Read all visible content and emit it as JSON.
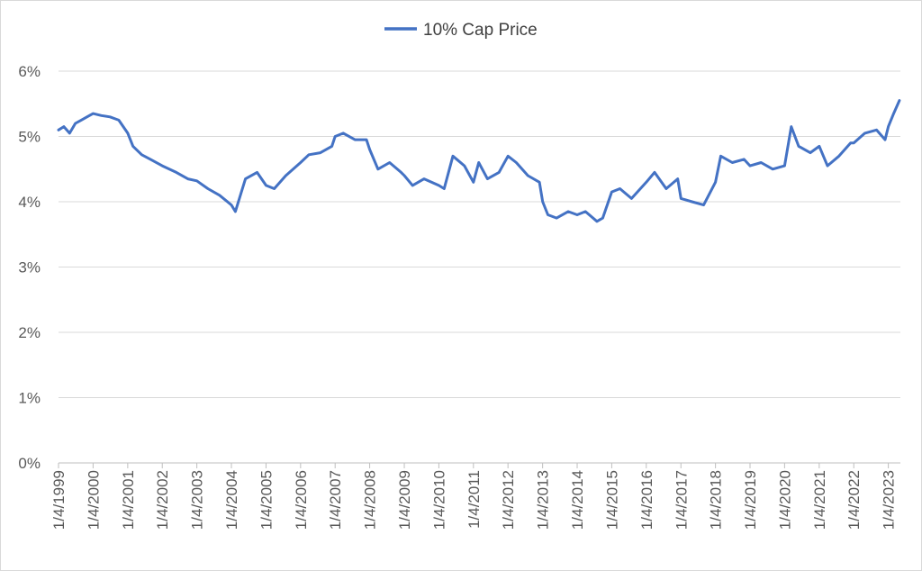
{
  "chart_data": {
    "type": "line",
    "title": "",
    "xlabel": "",
    "ylabel": "",
    "legend_position": "top",
    "grid": true,
    "series": [
      {
        "name": "10% Cap Price",
        "color": "#4472c4",
        "points": [
          [
            "1999-01-04",
            5.1
          ],
          [
            "1999-03-01",
            5.15
          ],
          [
            "1999-05-01",
            5.05
          ],
          [
            "1999-07-01",
            5.2
          ],
          [
            "1999-09-01",
            5.25
          ],
          [
            "1999-11-01",
            5.3
          ],
          [
            "2000-01-04",
            5.35
          ],
          [
            "2000-04-01",
            5.32
          ],
          [
            "2000-07-01",
            5.3
          ],
          [
            "2000-10-01",
            5.25
          ],
          [
            "2001-01-04",
            5.05
          ],
          [
            "2001-03-01",
            4.85
          ],
          [
            "2001-06-01",
            4.72
          ],
          [
            "2001-09-01",
            4.65
          ],
          [
            "2002-01-04",
            4.55
          ],
          [
            "2002-06-01",
            4.45
          ],
          [
            "2002-10-01",
            4.35
          ],
          [
            "2003-01-04",
            4.32
          ],
          [
            "2003-05-01",
            4.2
          ],
          [
            "2003-09-01",
            4.1
          ],
          [
            "2004-01-04",
            3.95
          ],
          [
            "2004-02-15",
            3.85
          ],
          [
            "2004-06-01",
            4.35
          ],
          [
            "2004-10-01",
            4.45
          ],
          [
            "2005-01-04",
            4.25
          ],
          [
            "2005-04-01",
            4.2
          ],
          [
            "2005-08-01",
            4.4
          ],
          [
            "2006-01-04",
            4.6
          ],
          [
            "2006-04-01",
            4.72
          ],
          [
            "2006-08-01",
            4.75
          ],
          [
            "2006-12-01",
            4.85
          ],
          [
            "2007-01-04",
            5.0
          ],
          [
            "2007-04-01",
            5.05
          ],
          [
            "2007-08-01",
            4.95
          ],
          [
            "2007-12-01",
            4.95
          ],
          [
            "2008-01-04",
            4.8
          ],
          [
            "2008-04-01",
            4.5
          ],
          [
            "2008-08-01",
            4.6
          ],
          [
            "2008-12-01",
            4.45
          ],
          [
            "2009-01-04",
            4.4
          ],
          [
            "2009-04-01",
            4.25
          ],
          [
            "2009-08-01",
            4.35
          ],
          [
            "2010-01-04",
            4.25
          ],
          [
            "2010-03-01",
            4.2
          ],
          [
            "2010-06-01",
            4.7
          ],
          [
            "2010-10-01",
            4.55
          ],
          [
            "2011-01-04",
            4.3
          ],
          [
            "2011-03-01",
            4.6
          ],
          [
            "2011-06-01",
            4.35
          ],
          [
            "2011-10-01",
            4.45
          ],
          [
            "2012-01-04",
            4.7
          ],
          [
            "2012-04-01",
            4.6
          ],
          [
            "2012-08-01",
            4.4
          ],
          [
            "2012-12-01",
            4.3
          ],
          [
            "2013-01-04",
            4.0
          ],
          [
            "2013-03-01",
            3.8
          ],
          [
            "2013-06-01",
            3.75
          ],
          [
            "2013-10-01",
            3.85
          ],
          [
            "2014-01-04",
            3.8
          ],
          [
            "2014-04-01",
            3.85
          ],
          [
            "2014-08-01",
            3.7
          ],
          [
            "2014-10-01",
            3.75
          ],
          [
            "2015-01-04",
            4.15
          ],
          [
            "2015-04-01",
            4.2
          ],
          [
            "2015-08-01",
            4.05
          ],
          [
            "2016-01-04",
            4.3
          ],
          [
            "2016-04-01",
            4.45
          ],
          [
            "2016-08-01",
            4.2
          ],
          [
            "2016-12-01",
            4.35
          ],
          [
            "2017-01-04",
            4.05
          ],
          [
            "2017-05-01",
            4.0
          ],
          [
            "2017-09-01",
            3.95
          ],
          [
            "2018-01-04",
            4.3
          ],
          [
            "2018-03-01",
            4.7
          ],
          [
            "2018-07-01",
            4.6
          ],
          [
            "2018-11-01",
            4.65
          ],
          [
            "2019-01-04",
            4.55
          ],
          [
            "2019-05-01",
            4.6
          ],
          [
            "2019-09-01",
            4.5
          ],
          [
            "2020-01-04",
            4.55
          ],
          [
            "2020-03-15",
            5.15
          ],
          [
            "2020-06-01",
            4.85
          ],
          [
            "2020-10-01",
            4.75
          ],
          [
            "2021-01-04",
            4.85
          ],
          [
            "2021-04-01",
            4.55
          ],
          [
            "2021-08-01",
            4.7
          ],
          [
            "2021-12-01",
            4.9
          ],
          [
            "2022-01-04",
            4.9
          ],
          [
            "2022-05-01",
            5.05
          ],
          [
            "2022-09-01",
            5.1
          ],
          [
            "2022-12-01",
            4.95
          ],
          [
            "2023-01-04",
            5.15
          ],
          [
            "2023-03-01",
            5.35
          ],
          [
            "2023-05-01",
            5.55
          ]
        ]
      }
    ],
    "y_axis": {
      "min": 0,
      "max": 6,
      "ticks": [
        0,
        1,
        2,
        3,
        4,
        5,
        6
      ],
      "tick_labels": [
        "0%",
        "1%",
        "2%",
        "3%",
        "4%",
        "5%",
        "6%"
      ]
    },
    "x_axis": {
      "start": "1999-01-04",
      "end": "2023-05-01",
      "ticks": [
        "1999-01-04",
        "2000-01-04",
        "2001-01-04",
        "2002-01-04",
        "2003-01-04",
        "2004-01-04",
        "2005-01-04",
        "2006-01-04",
        "2007-01-04",
        "2008-01-04",
        "2009-01-04",
        "2010-01-04",
        "2011-01-04",
        "2012-01-04",
        "2013-01-04",
        "2014-01-04",
        "2015-01-04",
        "2016-01-04",
        "2017-01-04",
        "2018-01-04",
        "2019-01-04",
        "2020-01-04",
        "2021-01-04",
        "2022-01-04",
        "2023-01-04"
      ],
      "tick_labels": [
        "1/4/1999",
        "1/4/2000",
        "1/4/2001",
        "1/4/2002",
        "1/4/2003",
        "1/4/2004",
        "1/4/2005",
        "1/4/2006",
        "1/4/2007",
        "1/4/2008",
        "1/4/2009",
        "1/4/2010",
        "1/4/2011",
        "1/4/2012",
        "1/4/2013",
        "1/4/2014",
        "1/4/2015",
        "1/4/2016",
        "1/4/2017",
        "1/4/2018",
        "1/4/2019",
        "1/4/2020",
        "1/4/2021",
        "1/4/2022",
        "1/4/2023"
      ]
    }
  }
}
